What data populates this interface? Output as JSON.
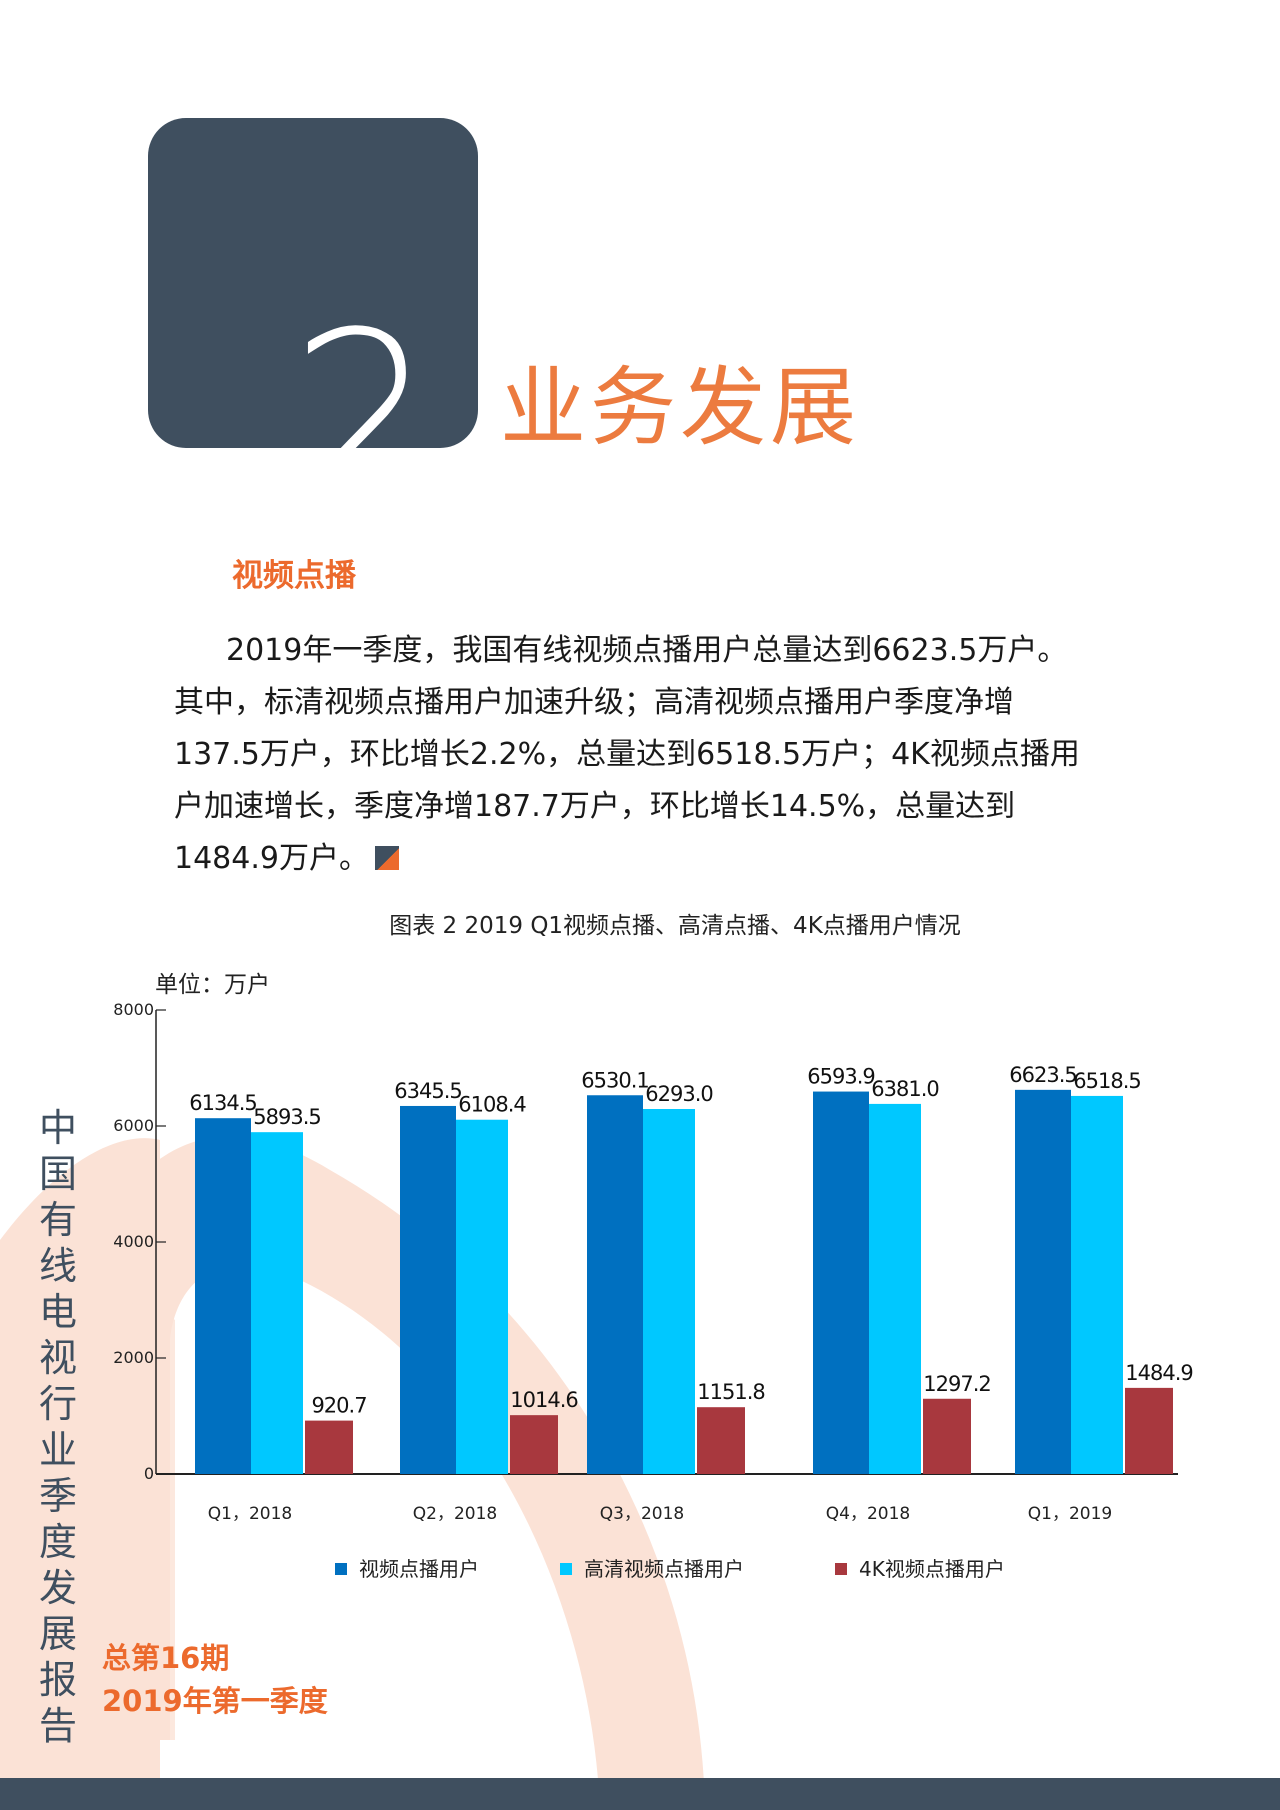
{
  "chapter": {
    "number": "2",
    "title": "业务发展"
  },
  "section": {
    "title": "视频点播"
  },
  "paragraph": {
    "text": "2019年一季度，我国有线视频点播用户总量达到6623.5万户。其中，标清视频点播用户加速升级；高清视频点播用户季度净增137.5万户，环比增长2.2%，总量达到6518.5万户；4K视频点播用户加速增长，季度净增187.7万户，环比增长14.5%，总量达到1484.9万户。"
  },
  "colors": {
    "accent": "#ec6a2d",
    "dark": "#3f4f5f",
    "series_vod": "#0070c0",
    "series_hd": "#00c8ff",
    "series_4k": "#a8383e",
    "decor": "#fbe2d6"
  },
  "chart_data": {
    "type": "bar",
    "title": "图表 2 2019 Q1视频点播、高清点播、4K点播用户情况",
    "unit_label": "单位：万户",
    "categories": [
      "Q1，2018",
      "Q2，2018",
      "Q3，2018",
      "Q4，2018",
      "Q1，2019"
    ],
    "series": [
      {
        "name": "视频点播用户",
        "values": [
          6134.5,
          6345.5,
          6530.1,
          6593.9,
          6623.5
        ],
        "labels": [
          "6134.5",
          "6345.5",
          "6530.1",
          "6593.9",
          "6623.5"
        ]
      },
      {
        "name": "高清视频点播用户",
        "values": [
          5893.5,
          6108.4,
          6293.0,
          6381.0,
          6518.5
        ],
        "labels": [
          "5893.5",
          "6108.4",
          "6293.0",
          "6381.0",
          "6518.5"
        ]
      },
      {
        "name": "4K视频点播用户",
        "values": [
          920.7,
          1014.6,
          1151.8,
          1297.2,
          1484.9
        ],
        "labels": [
          "920.7",
          "1014.6",
          "1151.8",
          "1297.2",
          "1484.9"
        ]
      }
    ],
    "yticks": [
      "0",
      "2000",
      "4000",
      "6000",
      "8000"
    ],
    "legend_position": "bottom"
  },
  "sidebar": {
    "vertical_title": "中国有线电视行业季度发展报告",
    "issue_number": "总第16期",
    "issue_period": "2019年第一季度"
  }
}
